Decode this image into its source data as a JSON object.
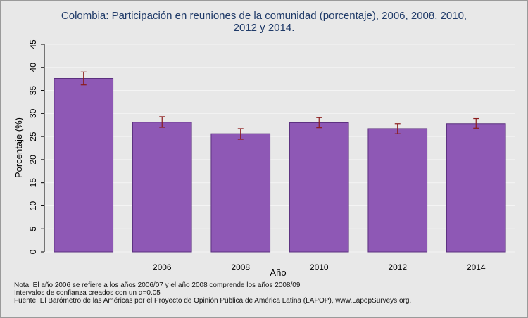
{
  "chart_data": {
    "type": "bar",
    "title_line1": "Colombia: Participación en reuniones de la comunidad (porcentaje), 2006, 2008, 2010,",
    "title_line2": "2012 y 2014.",
    "xlabel": "Año",
    "ylabel": "Porcentaje (%)",
    "categories": [
      "",
      "2006",
      "2008",
      "2010",
      "2012",
      "2014"
    ],
    "values": [
      37.6,
      28.1,
      25.6,
      28.0,
      26.7,
      27.8
    ],
    "ci_low": [
      36.2,
      27.0,
      24.4,
      26.9,
      25.6,
      26.8
    ],
    "ci_high": [
      39.0,
      29.3,
      26.7,
      29.1,
      27.8,
      28.9
    ],
    "ylim": [
      0,
      45
    ],
    "yticks": [
      0,
      5,
      10,
      15,
      20,
      25,
      30,
      35,
      40,
      45
    ],
    "grid": true,
    "legend": "none"
  },
  "colors": {
    "bar": "#8e58b5",
    "bar_edge": "#5a2f7e",
    "errorbar": "#8b1c1c",
    "grid": "#f4f4f4",
    "plot_bg": "#e8e8e8"
  },
  "notes": [
    "Nota: El año 2006 se refiere a los años 2006/07 y el año 2008 comprende los años 2008/09",
    "Intervalos de confianza creados con un α=0.05",
    "Fuente: El Barómetro de las Américas por el Proyecto de Opinión Pública de América Latina (LAPOP), www.LapopSurveys.org."
  ]
}
